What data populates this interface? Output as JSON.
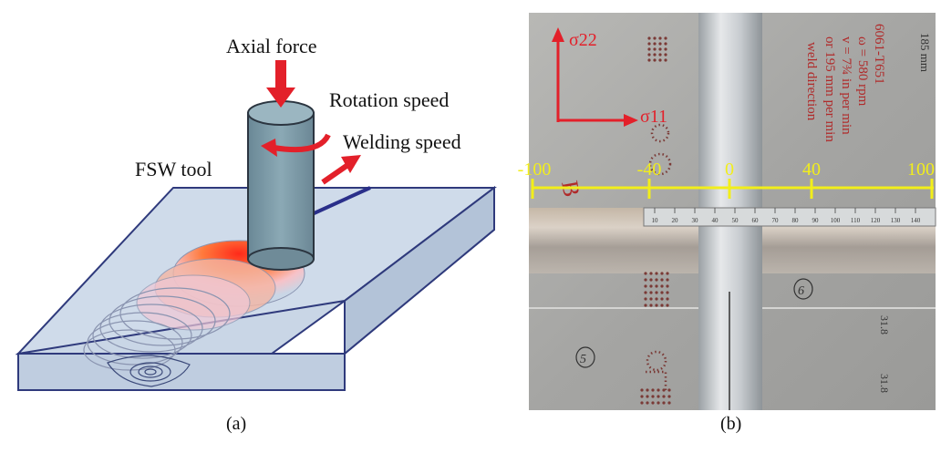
{
  "panel_a": {
    "labels": {
      "axial_force": "Axial force",
      "rotation_speed": "Rotation speed",
      "welding_speed": "Welding speed",
      "tool": "FSW tool"
    },
    "caption": "(a)"
  },
  "panel_b": {
    "stress_labels": {
      "vertical": "σ22",
      "horizontal": "σ11"
    },
    "scale_ticks": [
      "-100",
      "-40",
      "0",
      "40",
      "100"
    ],
    "ruler_numbers": [
      "10",
      "20",
      "30",
      "40",
      "50",
      "60",
      "70",
      "80",
      "90",
      "100",
      "110",
      "120",
      "130",
      "140"
    ],
    "handwritten": {
      "side_letter": "B",
      "line1": "6061-T651",
      "line2": "ω = 580 rpm",
      "line3": "v = 7¾ in per min",
      "line4": "or 195 mm per min",
      "line5": "weld direction",
      "line6": "185 mm",
      "circle_left": "5",
      "circle_right": "6",
      "mark_a": "31.8",
      "mark_b": "31.8"
    },
    "caption": "(b)"
  },
  "colors": {
    "arrow_red": "#e3202a",
    "tool_fill": "#7a9aa7",
    "plate_fill": "#c9d6e6",
    "plate_edge": "#2f3a7c",
    "scale_yellow": "#f2ee1a",
    "photo_bg": "#a8a8a6"
  }
}
